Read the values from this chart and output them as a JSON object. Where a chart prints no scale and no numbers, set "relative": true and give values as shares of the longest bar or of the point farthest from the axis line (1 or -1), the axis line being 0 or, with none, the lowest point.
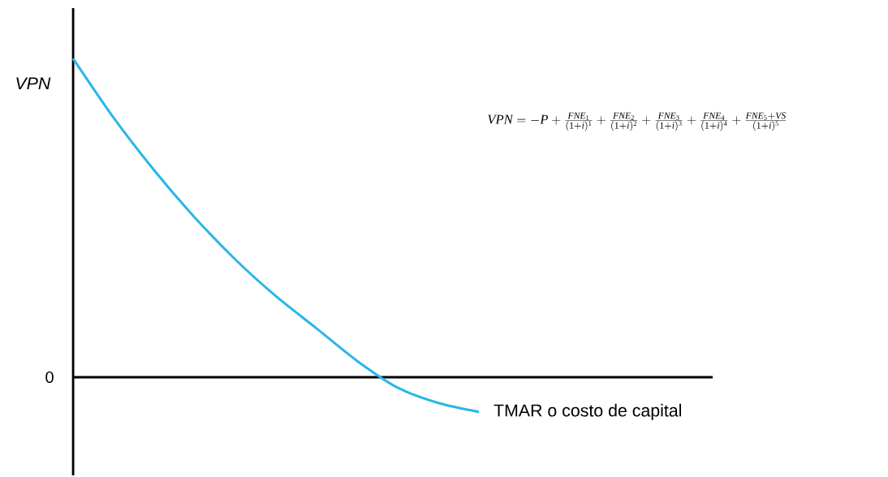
{
  "chart_data": {
    "type": "line",
    "relative": true,
    "categories": [
      null,
      null,
      null,
      null,
      null,
      null,
      null,
      null,
      null,
      null,
      null
    ],
    "values": [
      1,
      0.814,
      0.649,
      0.501,
      0.369,
      0.254,
      0.153,
      0.051,
      -0.033,
      -0.081,
      -0.109
    ],
    "color": "#29b6e8",
    "marker": "none",
    "line_style": "solid",
    "xlabel": "TMAR  o costo de capital",
    "ylabel": "VPN",
    "annotations": [
      "0",
      "VPN = -P + \\frac{FNE_1}{(1+i)^1} + \\frac{FNE_2}{(1+i)^2} + \\frac{FNE_3}{(1+i)^3} + \\frac{FNE_4}{(1+i)^4} + \\frac{FNE_5 + VS}{(1+i)^5}"
    ]
  }
}
